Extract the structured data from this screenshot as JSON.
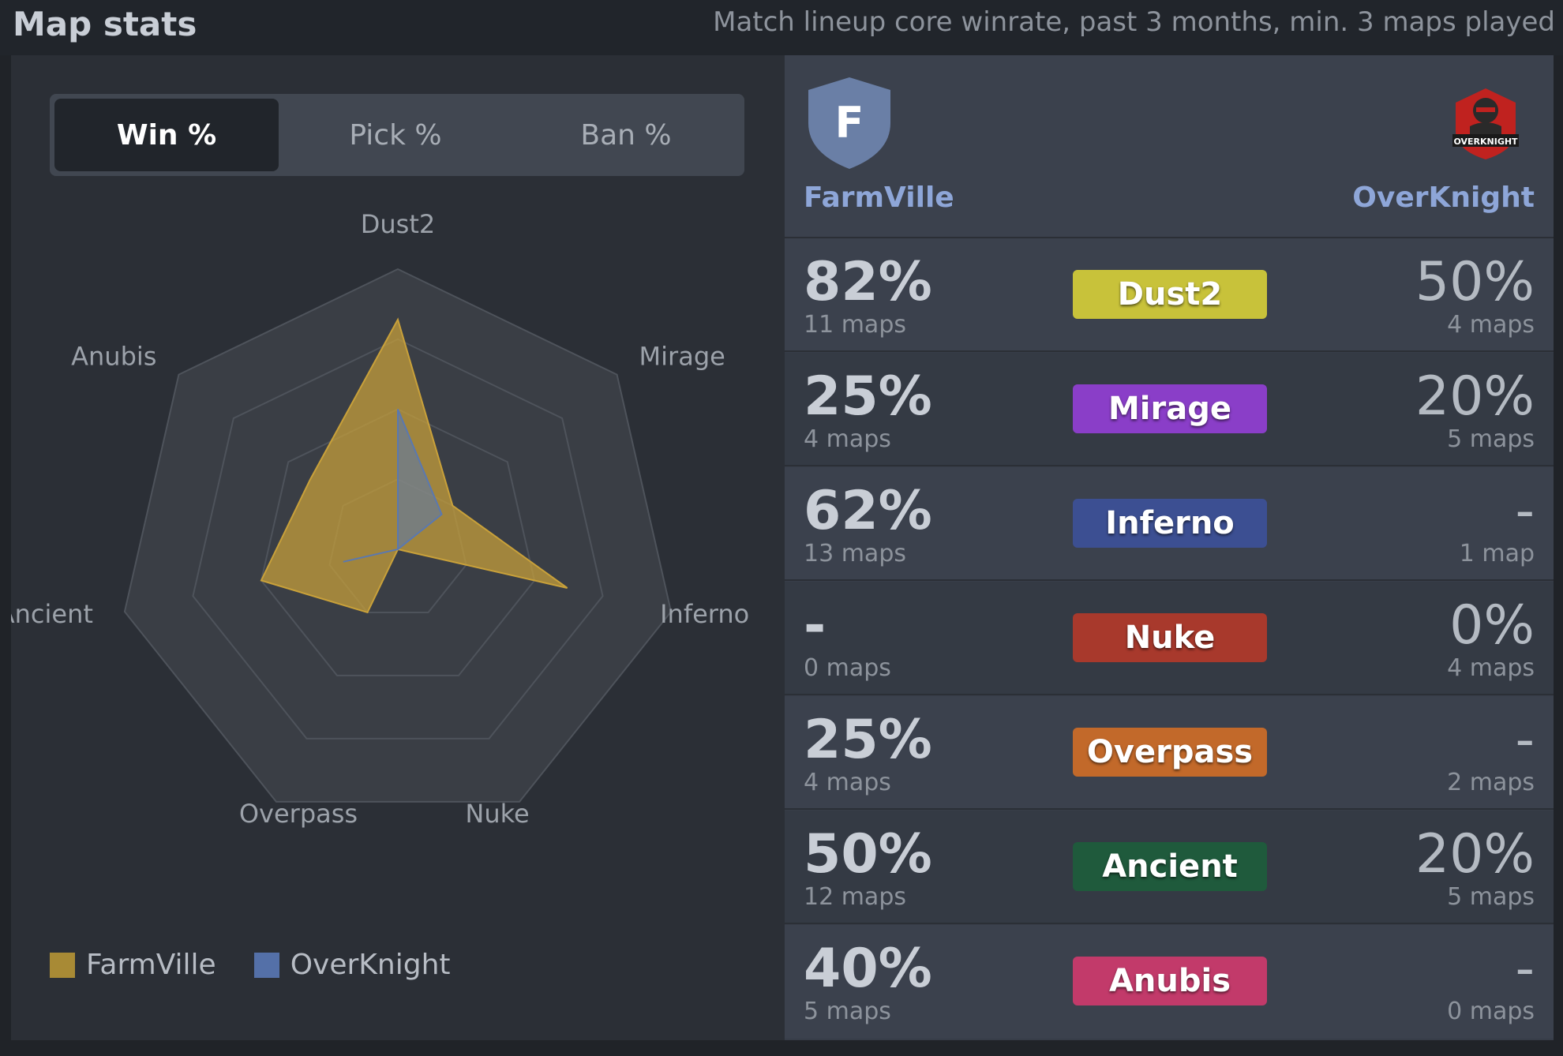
{
  "header": {
    "title": "Map stats",
    "subtitle": "Match lineup core winrate, past 3 months, min. 3 maps played"
  },
  "tabs": [
    {
      "label": "Win %",
      "active": true
    },
    {
      "label": "Pick %",
      "active": false
    },
    {
      "label": "Ban %",
      "active": false
    }
  ],
  "chart_data": {
    "type": "radar",
    "axes": [
      "Dust2",
      "Mirage",
      "Inferno",
      "Nuke",
      "Overpass",
      "Ancient",
      "Anubis"
    ],
    "range": [
      0,
      100
    ],
    "grid_levels": 4,
    "series": [
      {
        "name": "FarmVille",
        "values": [
          82,
          25,
          62,
          0,
          25,
          50,
          40
        ],
        "color": "#c9a13a"
      },
      {
        "name": "OverKnight",
        "values": [
          50,
          20,
          0,
          0,
          0,
          20,
          0
        ],
        "color": "#5a78b0"
      }
    ]
  },
  "legend": [
    {
      "name": "FarmVille",
      "color": "#a88a35"
    },
    {
      "name": "OverKnight",
      "color": "#5470a8"
    }
  ],
  "teams": {
    "left": {
      "name": "FarmVille",
      "logo_letter": "F",
      "logo_icon": "shield-icon"
    },
    "right": {
      "name": "OverKnight",
      "logo_icon": "knight-logo-icon",
      "logo_text": "OVERKNIGHT"
    }
  },
  "maps": [
    {
      "name": "Dust2",
      "color": "#c8c23a",
      "left_pct": "82%",
      "left_maps": "11 maps",
      "right_pct": "50%",
      "right_maps": "4 maps"
    },
    {
      "name": "Mirage",
      "color": "#8a3ec8",
      "left_pct": "25%",
      "left_maps": "4 maps",
      "right_pct": "20%",
      "right_maps": "5 maps"
    },
    {
      "name": "Inferno",
      "color": "#3c4f92",
      "left_pct": "62%",
      "left_maps": "13 maps",
      "right_pct": "-",
      "right_maps": "1 map"
    },
    {
      "name": "Nuke",
      "color": "#a8392c",
      "left_pct": "-",
      "left_maps": "0 maps",
      "right_pct": "0%",
      "right_maps": "4 maps"
    },
    {
      "name": "Overpass",
      "color": "#c2692a",
      "left_pct": "25%",
      "left_maps": "4 maps",
      "right_pct": "-",
      "right_maps": "2 maps"
    },
    {
      "name": "Ancient",
      "color": "#1f5a3c",
      "left_pct": "50%",
      "left_maps": "12 maps",
      "right_pct": "20%",
      "right_maps": "5 maps"
    },
    {
      "name": "Anubis",
      "color": "#c23a6a",
      "left_pct": "40%",
      "left_maps": "5 maps",
      "right_pct": "-",
      "right_maps": "0 maps"
    }
  ]
}
